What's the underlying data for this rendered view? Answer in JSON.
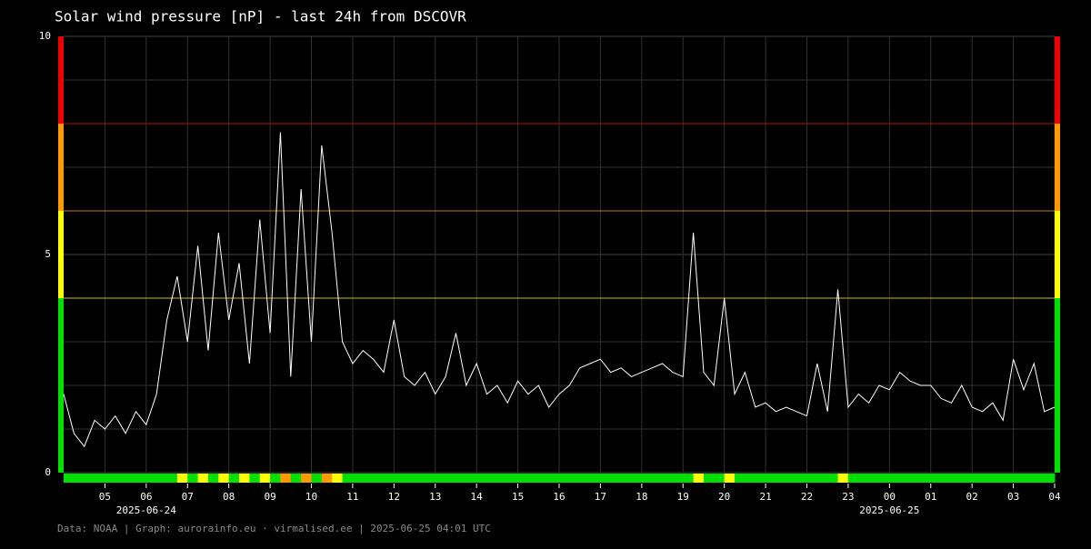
{
  "chart_data": {
    "type": "line",
    "title": "Solar wind pressure [nP] - last 24h from DSCOVR",
    "footer": "Data: NOAA | Graph: aurorainfo.eu · virmalised.ee | 2025-06-25 04:01 UTC",
    "xlim": [
      "2025-06-24T04:00",
      "2025-06-25T04:00"
    ],
    "xticks": [
      {
        "value": "2025-06-24T05:00",
        "label": "05"
      },
      {
        "value": "2025-06-24T06:00",
        "label": "06"
      },
      {
        "value": "2025-06-24T07:00",
        "label": "07"
      },
      {
        "value": "2025-06-24T08:00",
        "label": "08"
      },
      {
        "value": "2025-06-24T09:00",
        "label": "09"
      },
      {
        "value": "2025-06-24T10:00",
        "label": "10"
      },
      {
        "value": "2025-06-24T11:00",
        "label": "11"
      },
      {
        "value": "2025-06-24T12:00",
        "label": "12"
      },
      {
        "value": "2025-06-24T13:00",
        "label": "13"
      },
      {
        "value": "2025-06-24T14:00",
        "label": "14"
      },
      {
        "value": "2025-06-24T15:00",
        "label": "15"
      },
      {
        "value": "2025-06-24T16:00",
        "label": "16"
      },
      {
        "value": "2025-06-24T17:00",
        "label": "17"
      },
      {
        "value": "2025-06-24T18:00",
        "label": "18"
      },
      {
        "value": "2025-06-24T19:00",
        "label": "19"
      },
      {
        "value": "2025-06-24T20:00",
        "label": "20"
      },
      {
        "value": "2025-06-24T21:00",
        "label": "21"
      },
      {
        "value": "2025-06-24T22:00",
        "label": "22"
      },
      {
        "value": "2025-06-24T23:00",
        "label": "23"
      },
      {
        "value": "2025-06-25T00:00",
        "label": "00"
      },
      {
        "value": "2025-06-25T01:00",
        "label": "01"
      },
      {
        "value": "2025-06-25T02:00",
        "label": "02"
      },
      {
        "value": "2025-06-25T03:00",
        "label": "03"
      },
      {
        "value": "2025-06-25T04:00",
        "label": "04"
      }
    ],
    "date_labels": [
      {
        "value": "2025-06-24T06:00",
        "label": "2025-06-24"
      },
      {
        "value": "2025-06-25T00:00",
        "label": "2025-06-25"
      }
    ],
    "ylim": [
      0,
      10
    ],
    "yticks": [
      0,
      5,
      10
    ],
    "minor_yticks": [
      1,
      2,
      3,
      4,
      6,
      7,
      8,
      9
    ],
    "grid": true,
    "thresholds": [
      {
        "from": 0,
        "to": 4,
        "color": "#00e000"
      },
      {
        "from": 4,
        "to": 6,
        "color": "#ffff00"
      },
      {
        "from": 6,
        "to": 8,
        "color": "#ff9900"
      },
      {
        "from": 8,
        "to": 10,
        "color": "#ee0000"
      }
    ],
    "series": [
      {
        "color": "#ffffff",
        "x": [
          "2025-06-24T04:00",
          "2025-06-24T04:15",
          "2025-06-24T04:30",
          "2025-06-24T04:45",
          "2025-06-24T05:00",
          "2025-06-24T05:15",
          "2025-06-24T05:30",
          "2025-06-24T05:45",
          "2025-06-24T06:00",
          "2025-06-24T06:15",
          "2025-06-24T06:30",
          "2025-06-24T06:45",
          "2025-06-24T07:00",
          "2025-06-24T07:15",
          "2025-06-24T07:30",
          "2025-06-24T07:45",
          "2025-06-24T08:00",
          "2025-06-24T08:15",
          "2025-06-24T08:30",
          "2025-06-24T08:45",
          "2025-06-24T09:00",
          "2025-06-24T09:15",
          "2025-06-24T09:30",
          "2025-06-24T09:45",
          "2025-06-24T10:00",
          "2025-06-24T10:15",
          "2025-06-24T10:30",
          "2025-06-24T10:45",
          "2025-06-24T11:00",
          "2025-06-24T11:15",
          "2025-06-24T11:30",
          "2025-06-24T11:45",
          "2025-06-24T12:00",
          "2025-06-24T12:15",
          "2025-06-24T12:30",
          "2025-06-24T12:45",
          "2025-06-24T13:00",
          "2025-06-24T13:15",
          "2025-06-24T13:30",
          "2025-06-24T13:45",
          "2025-06-24T14:00",
          "2025-06-24T14:15",
          "2025-06-24T14:30",
          "2025-06-24T14:45",
          "2025-06-24T15:00",
          "2025-06-24T15:15",
          "2025-06-24T15:30",
          "2025-06-24T15:45",
          "2025-06-24T16:00",
          "2025-06-24T16:15",
          "2025-06-24T16:30",
          "2025-06-24T16:45",
          "2025-06-24T17:00",
          "2025-06-24T17:15",
          "2025-06-24T17:30",
          "2025-06-24T17:45",
          "2025-06-24T18:00",
          "2025-06-24T18:15",
          "2025-06-24T18:30",
          "2025-06-24T18:45",
          "2025-06-24T19:00",
          "2025-06-24T19:15",
          "2025-06-24T19:30",
          "2025-06-24T19:45",
          "2025-06-24T20:00",
          "2025-06-24T20:15",
          "2025-06-24T20:30",
          "2025-06-24T20:45",
          "2025-06-24T21:00",
          "2025-06-24T21:15",
          "2025-06-24T21:30",
          "2025-06-24T21:45",
          "2025-06-24T22:00",
          "2025-06-24T22:15",
          "2025-06-24T22:30",
          "2025-06-24T22:45",
          "2025-06-24T23:00",
          "2025-06-24T23:15",
          "2025-06-24T23:30",
          "2025-06-24T23:45",
          "2025-06-25T00:00",
          "2025-06-25T00:15",
          "2025-06-25T00:30",
          "2025-06-25T00:45",
          "2025-06-25T01:00",
          "2025-06-25T01:15",
          "2025-06-25T01:30",
          "2025-06-25T01:45",
          "2025-06-25T02:00",
          "2025-06-25T02:15",
          "2025-06-25T02:30",
          "2025-06-25T02:45",
          "2025-06-25T03:00",
          "2025-06-25T03:15",
          "2025-06-25T03:30",
          "2025-06-25T03:45",
          "2025-06-25T04:00"
        ],
        "values": [
          1.8,
          0.9,
          0.6,
          1.2,
          1.0,
          1.3,
          0.9,
          1.4,
          1.1,
          1.8,
          3.5,
          4.5,
          3.0,
          5.2,
          2.8,
          5.5,
          3.5,
          4.8,
          2.5,
          5.8,
          3.2,
          7.8,
          2.2,
          6.5,
          3.0,
          7.5,
          5.5,
          3.0,
          2.5,
          2.8,
          2.6,
          2.3,
          3.5,
          2.2,
          2.0,
          2.3,
          1.8,
          2.2,
          3.2,
          2.0,
          2.5,
          1.8,
          2.0,
          1.6,
          2.1,
          1.8,
          2.0,
          1.5,
          1.8,
          2.0,
          2.4,
          2.5,
          2.6,
          2.3,
          2.4,
          2.2,
          2.3,
          2.4,
          2.5,
          2.3,
          2.2,
          5.5,
          2.3,
          2.0,
          4.0,
          1.8,
          2.3,
          1.5,
          1.6,
          1.4,
          1.5,
          1.4,
          1.3,
          2.5,
          1.4,
          4.2,
          1.5,
          1.8,
          1.6,
          2.0,
          1.9,
          2.3,
          2.1,
          2.0,
          2.0,
          1.7,
          1.6,
          2.0,
          1.5,
          1.4,
          1.6,
          1.2,
          2.6,
          1.9,
          2.5,
          1.4,
          1.5
        ]
      }
    ]
  }
}
